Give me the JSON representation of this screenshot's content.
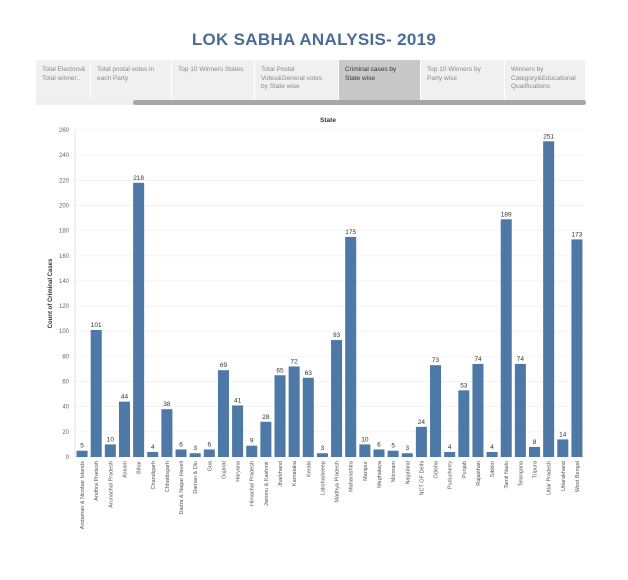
{
  "dashboard": {
    "title": "LOK SABHA ANALYSIS- 2019",
    "tabs": [
      {
        "label": "Total Electors&\nTotal winner..",
        "active": false
      },
      {
        "label": "Total postal votes in\neach Party",
        "active": false
      },
      {
        "label": "Top 10 Winners States",
        "active": false
      },
      {
        "label": "Total Postal\nVotes&General votes\nby State wise",
        "active": false
      },
      {
        "label": "Criminal cases by\nState wise",
        "active": true
      },
      {
        "label": "Top 10 Winners by\nParty wise",
        "active": false
      },
      {
        "label": "Winners by\nCategory&Educational\nQualifications",
        "active": false
      }
    ]
  },
  "chart_data": {
    "type": "bar",
    "title": "State",
    "xlabel": "",
    "ylabel": "Count of Criminal Cases",
    "ylim": [
      0,
      260
    ],
    "yticks": [
      0,
      20,
      40,
      60,
      80,
      100,
      120,
      140,
      160,
      180,
      200,
      220,
      240,
      260
    ],
    "grid": true,
    "bar_color": "#4e79a7",
    "categories": [
      "Andaman & Nicobar Islands",
      "Andhra Pradesh",
      "Arunachal Pradesh",
      "Assam",
      "Bihar",
      "Chandigarh",
      "Chhattisgarh",
      "Dadra & Nagar Haveli",
      "Daman & Diu",
      "Goa",
      "Gujarat",
      "Haryana",
      "Himachal Pradesh",
      "Jammu & Kashmir",
      "Jharkhand",
      "Karnataka",
      "Kerala",
      "Lakshadweep",
      "Madhya Pradesh",
      "Maharashtra",
      "Manipur",
      "Meghalaya",
      "Mizoram",
      "Nagaland",
      "NCT OF Delhi",
      "Odisha",
      "Puducherry",
      "Punjab",
      "Rajasthan",
      "Sikkim",
      "Tamil Nadu",
      "Telangana",
      "Tripura",
      "Uttar Pradesh",
      "Uttarakhand",
      "West Bengal"
    ],
    "values": [
      5,
      101,
      10,
      44,
      218,
      4,
      38,
      6,
      3,
      6,
      69,
      41,
      9,
      28,
      65,
      72,
      63,
      3,
      93,
      175,
      10,
      6,
      5,
      3,
      24,
      73,
      4,
      53,
      74,
      4,
      189,
      74,
      8,
      251,
      14,
      173
    ]
  }
}
